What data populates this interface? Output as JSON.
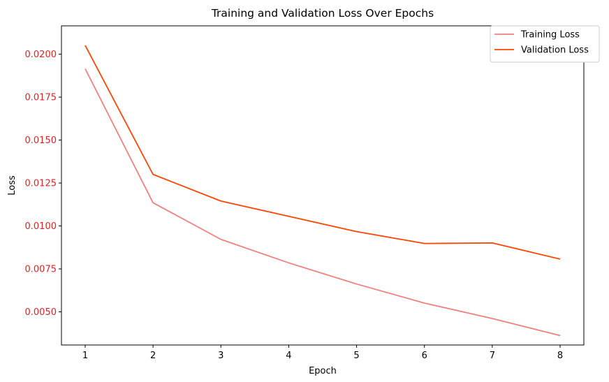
{
  "chart_data": {
    "type": "line",
    "title": "Training and Validation Loss Over Epochs",
    "xlabel": "Epoch",
    "ylabel": "Loss",
    "x": [
      1,
      2,
      3,
      4,
      5,
      6,
      7,
      8
    ],
    "xlim": [
      0.65,
      8.35
    ],
    "ylim": [
      0.00307,
      0.02165
    ],
    "xticks": [
      1,
      2,
      3,
      4,
      5,
      6,
      7,
      8
    ],
    "yticks": [
      0.005,
      0.0075,
      0.01,
      0.0125,
      0.015,
      0.0175,
      0.02
    ],
    "ytick_labels": [
      "0.0050",
      "0.0075",
      "0.0100",
      "0.0125",
      "0.0150",
      "0.0175",
      "0.0200"
    ],
    "ytick_label_color": "#d62728",
    "grid": false,
    "legend_position": "top-right",
    "series": [
      {
        "name": "Training Loss",
        "color": "#f08080",
        "values": [
          0.01915,
          0.01135,
          0.00922,
          0.00785,
          0.00662,
          0.00551,
          0.00461,
          0.00362
        ]
      },
      {
        "name": "Validation Loss",
        "color": "#ff4500",
        "values": [
          0.02051,
          0.013,
          0.01145,
          0.01056,
          0.00967,
          0.00898,
          0.00901,
          0.00807
        ]
      }
    ]
  }
}
